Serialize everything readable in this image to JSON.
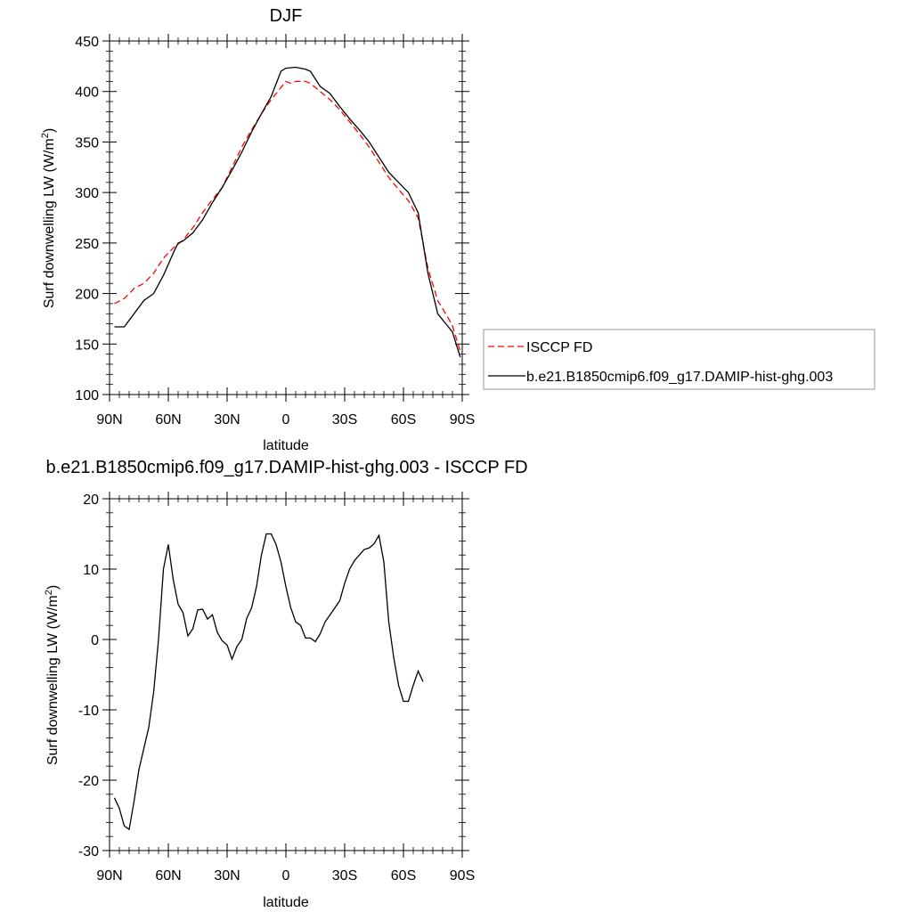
{
  "chart_data": [
    {
      "type": "line",
      "title": "DJF",
      "xlabel": "latitude",
      "ylabel": "Surf downwelling LW (W/m",
      "ylabel_sup": "2",
      "ylabel_close": ")",
      "xlim": [
        90,
        -90
      ],
      "ylim": [
        100,
        450
      ],
      "xticks": [
        {
          "value": 90,
          "label": "90N"
        },
        {
          "value": 60,
          "label": "60N"
        },
        {
          "value": 30,
          "label": "30N"
        },
        {
          "value": 0,
          "label": "0"
        },
        {
          "value": -30,
          "label": "30S"
        },
        {
          "value": -60,
          "label": "60S"
        },
        {
          "value": -90,
          "label": "90S"
        }
      ],
      "yticks": [
        100,
        150,
        200,
        250,
        300,
        350,
        400,
        450
      ],
      "legend_position": "right",
      "series": [
        {
          "name": "ISCCP FD",
          "color": "#ff0000",
          "dash": "dashed",
          "points": [
            [
              87.5,
              190
            ],
            [
              82.5,
              195
            ],
            [
              77.5,
              205
            ],
            [
              72.5,
              210
            ],
            [
              67.5,
              220
            ],
            [
              62.5,
              235
            ],
            [
              57.5,
              245
            ],
            [
              52.5,
              253
            ],
            [
              47.5,
              265
            ],
            [
              42.5,
              280
            ],
            [
              37.5,
              293
            ],
            [
              32.5,
              305
            ],
            [
              27.5,
              325
            ],
            [
              22.5,
              345
            ],
            [
              17.5,
              362
            ],
            [
              12.5,
              378
            ],
            [
              7.5,
              392
            ],
            [
              2.5,
              404
            ],
            [
              0,
              410
            ],
            [
              -2.5,
              408
            ],
            [
              -5,
              410
            ],
            [
              -10,
              410
            ],
            [
              -12.5,
              408
            ],
            [
              -17.5,
              400
            ],
            [
              -22.5,
              392
            ],
            [
              -27.5,
              382
            ],
            [
              -32.5,
              370
            ],
            [
              -37.5,
              358
            ],
            [
              -42.5,
              345
            ],
            [
              -47.5,
              330
            ],
            [
              -52.5,
              315
            ],
            [
              -57.5,
              303
            ],
            [
              -62.5,
              292
            ],
            [
              -67.5,
              275
            ],
            [
              -72.5,
              225
            ],
            [
              -77.5,
              193
            ],
            [
              -82.5,
              177
            ],
            [
              -85,
              168
            ],
            [
              -89,
              143
            ]
          ]
        },
        {
          "name": "b.e21.B1850cmip6.f09_g17.DAMIP-hist-ghg.003",
          "color": "#000000",
          "dash": "solid",
          "points": [
            [
              87.5,
              167
            ],
            [
              82.5,
              167
            ],
            [
              77.5,
              180
            ],
            [
              72.5,
              193
            ],
            [
              67.5,
              200
            ],
            [
              62.5,
              218
            ],
            [
              57.5,
              240
            ],
            [
              55,
              250
            ],
            [
              52.5,
              252
            ],
            [
              47.5,
              260
            ],
            [
              42.5,
              273
            ],
            [
              37.5,
              290
            ],
            [
              32.5,
              305
            ],
            [
              27.5,
              322
            ],
            [
              22.5,
              340
            ],
            [
              17.5,
              360
            ],
            [
              12.5,
              378
            ],
            [
              7.5,
              395
            ],
            [
              2.5,
              420
            ],
            [
              0,
              423
            ],
            [
              -5,
              424
            ],
            [
              -10,
              422
            ],
            [
              -12.5,
              420
            ],
            [
              -17.5,
              405
            ],
            [
              -22.5,
              398
            ],
            [
              -27.5,
              385
            ],
            [
              -32.5,
              373
            ],
            [
              -37.5,
              362
            ],
            [
              -42.5,
              350
            ],
            [
              -47.5,
              335
            ],
            [
              -52.5,
              320
            ],
            [
              -57.5,
              310
            ],
            [
              -62.5,
              300
            ],
            [
              -67.5,
              280
            ],
            [
              -72.5,
              220
            ],
            [
              -77.5,
              180
            ],
            [
              -82.5,
              168
            ],
            [
              -85,
              162
            ],
            [
              -89,
              137
            ]
          ]
        }
      ]
    },
    {
      "type": "line",
      "title": "b.e21.B1850cmip6.f09_g17.DAMIP-hist-ghg.003 - ISCCP FD",
      "xlabel": "latitude",
      "ylabel": "Surf downwelling LW (W/m",
      "ylabel_sup": "2",
      "ylabel_close": ")",
      "xlim": [
        90,
        -90
      ],
      "ylim": [
        -30,
        20
      ],
      "xticks": [
        {
          "value": 90,
          "label": "90N"
        },
        {
          "value": 60,
          "label": "60N"
        },
        {
          "value": 30,
          "label": "30N"
        },
        {
          "value": 0,
          "label": "0"
        },
        {
          "value": -30,
          "label": "30S"
        },
        {
          "value": -60,
          "label": "60S"
        },
        {
          "value": -90,
          "label": "90S"
        }
      ],
      "yticks": [
        -30,
        -20,
        -10,
        0,
        10,
        20
      ],
      "series": [
        {
          "color": "#000000",
          "dash": "solid",
          "points": [
            [
              87.5,
              -22.5
            ],
            [
              85,
              -24
            ],
            [
              82.5,
              -26.5
            ],
            [
              80,
              -27
            ],
            [
              77.5,
              -23
            ],
            [
              75,
              -18.5
            ],
            [
              70,
              -12.5
            ],
            [
              67.5,
              -7.5
            ],
            [
              65,
              0
            ],
            [
              62.5,
              10
            ],
            [
              60,
              13.5
            ],
            [
              57.5,
              8.5
            ],
            [
              55,
              5
            ],
            [
              52.5,
              3.8
            ],
            [
              50,
              0.5
            ],
            [
              47.5,
              1.5
            ],
            [
              45,
              4.2
            ],
            [
              42.5,
              4.3
            ],
            [
              40,
              2.9
            ],
            [
              37.5,
              3.5
            ],
            [
              35,
              1
            ],
            [
              32.5,
              -0.2
            ],
            [
              30,
              -0.8
            ],
            [
              27.5,
              -2.8
            ],
            [
              25,
              -1
            ],
            [
              22.5,
              0
            ],
            [
              20,
              3
            ],
            [
              17.5,
              4.5
            ],
            [
              15,
              7.5
            ],
            [
              12.5,
              12
            ],
            [
              10,
              15
            ],
            [
              7.5,
              15
            ],
            [
              5,
              13.5
            ],
            [
              2.5,
              11
            ],
            [
              0,
              7.5
            ],
            [
              -2.5,
              4.5
            ],
            [
              -5,
              2.5
            ],
            [
              -7.5,
              2
            ],
            [
              -10,
              0.2
            ],
            [
              -12.5,
              0.2
            ],
            [
              -15,
              -0.3
            ],
            [
              -17.5,
              0.8
            ],
            [
              -20,
              2.5
            ],
            [
              -25,
              4.5
            ],
            [
              -27.5,
              5.5
            ],
            [
              -30,
              8
            ],
            [
              -32.5,
              10
            ],
            [
              -35,
              11.2
            ],
            [
              -37.5,
              12
            ],
            [
              -40,
              12.8
            ],
            [
              -42.5,
              13
            ],
            [
              -45,
              13.6
            ],
            [
              -47.5,
              14.8
            ],
            [
              -50,
              11
            ],
            [
              -52.5,
              2.5
            ],
            [
              -55,
              -2.5
            ],
            [
              -57.5,
              -6.5
            ],
            [
              -60,
              -8.8
            ],
            [
              -62.5,
              -8.8
            ],
            [
              -65,
              -6.5
            ],
            [
              -67.5,
              -4.5
            ],
            [
              -70,
              -6
            ]
          ]
        }
      ]
    }
  ]
}
